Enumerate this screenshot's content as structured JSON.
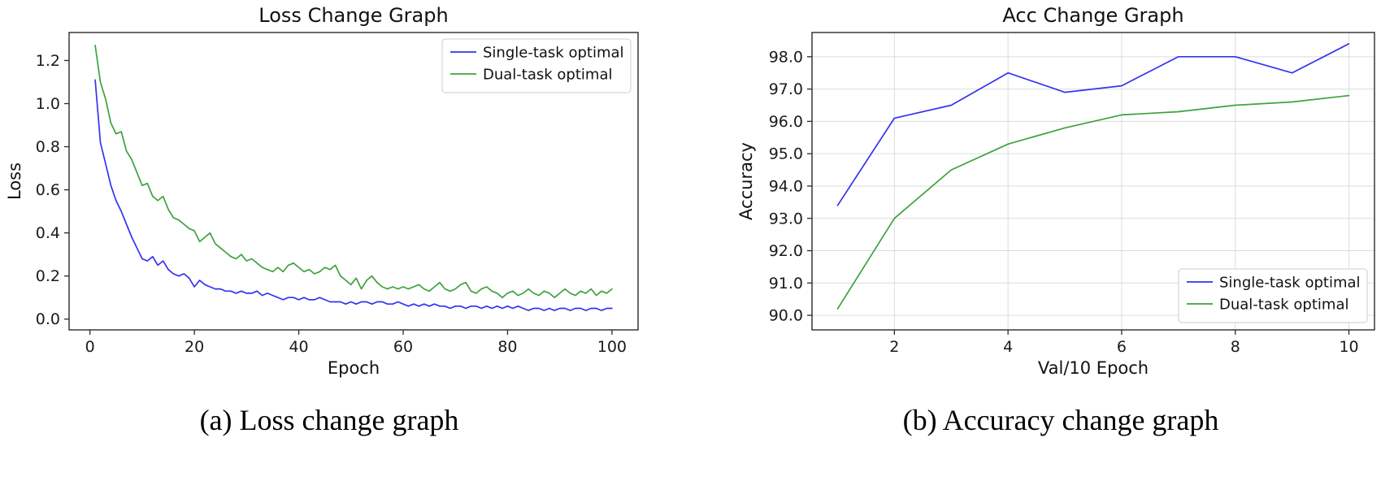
{
  "figure": {
    "captions": [
      {
        "label": "(a) Loss change graph"
      },
      {
        "label": "(b) Accuracy change graph"
      }
    ]
  },
  "colors": {
    "single_task": "#3333f0",
    "dual_task": "#3da23d",
    "axis": "#2b2b2b",
    "grid": "#dcdcdc",
    "legend_border": "#cccccc"
  },
  "chart_data": [
    {
      "type": "line",
      "title": "Loss Change Graph",
      "xlabel": "Epoch",
      "ylabel": "Loss",
      "xlim": [
        -4,
        105
      ],
      "ylim": [
        -0.05,
        1.33
      ],
      "xticks": [
        0,
        20,
        40,
        60,
        80,
        100
      ],
      "xtick_labels": [
        "0",
        "20",
        "40",
        "60",
        "80",
        "100"
      ],
      "yticks": [
        0.0,
        0.2,
        0.4,
        0.6,
        0.8,
        1.0,
        1.2
      ],
      "ytick_labels": [
        "0.0",
        "0.2",
        "0.4",
        "0.6",
        "0.8",
        "1.0",
        "1.2"
      ],
      "grid": false,
      "legend_pos": "upper-right",
      "series": [
        {
          "name": "Single-task optimal",
          "color": "#3333f0",
          "values": [
            1.11,
            0.82,
            0.72,
            0.62,
            0.55,
            0.5,
            0.44,
            0.38,
            0.33,
            0.28,
            0.27,
            0.29,
            0.25,
            0.27,
            0.23,
            0.21,
            0.2,
            0.21,
            0.19,
            0.15,
            0.18,
            0.16,
            0.15,
            0.14,
            0.14,
            0.13,
            0.13,
            0.12,
            0.13,
            0.12,
            0.12,
            0.13,
            0.11,
            0.12,
            0.11,
            0.1,
            0.09,
            0.1,
            0.1,
            0.09,
            0.1,
            0.09,
            0.09,
            0.1,
            0.09,
            0.08,
            0.08,
            0.08,
            0.07,
            0.08,
            0.07,
            0.08,
            0.08,
            0.07,
            0.08,
            0.08,
            0.07,
            0.07,
            0.08,
            0.07,
            0.06,
            0.07,
            0.06,
            0.07,
            0.06,
            0.07,
            0.06,
            0.06,
            0.05,
            0.06,
            0.06,
            0.05,
            0.06,
            0.06,
            0.05,
            0.06,
            0.05,
            0.06,
            0.05,
            0.06,
            0.05,
            0.06,
            0.05,
            0.04,
            0.05,
            0.05,
            0.04,
            0.05,
            0.04,
            0.05,
            0.05,
            0.04,
            0.05,
            0.05,
            0.04,
            0.05,
            0.05,
            0.04,
            0.05,
            0.05
          ]
        },
        {
          "name": "Dual-task optimal",
          "color": "#3da23d",
          "values": [
            1.27,
            1.1,
            1.02,
            0.91,
            0.86,
            0.87,
            0.78,
            0.74,
            0.68,
            0.62,
            0.63,
            0.57,
            0.55,
            0.57,
            0.51,
            0.47,
            0.46,
            0.44,
            0.42,
            0.41,
            0.36,
            0.38,
            0.4,
            0.35,
            0.33,
            0.31,
            0.29,
            0.28,
            0.3,
            0.27,
            0.28,
            0.26,
            0.24,
            0.23,
            0.22,
            0.24,
            0.22,
            0.25,
            0.26,
            0.24,
            0.22,
            0.23,
            0.21,
            0.22,
            0.24,
            0.23,
            0.25,
            0.2,
            0.18,
            0.16,
            0.19,
            0.14,
            0.18,
            0.2,
            0.17,
            0.15,
            0.14,
            0.15,
            0.14,
            0.15,
            0.14,
            0.15,
            0.16,
            0.14,
            0.13,
            0.15,
            0.17,
            0.14,
            0.13,
            0.14,
            0.16,
            0.17,
            0.13,
            0.12,
            0.14,
            0.15,
            0.13,
            0.12,
            0.1,
            0.12,
            0.13,
            0.11,
            0.12,
            0.14,
            0.12,
            0.11,
            0.13,
            0.12,
            0.1,
            0.12,
            0.14,
            0.12,
            0.11,
            0.13,
            0.12,
            0.14,
            0.11,
            0.13,
            0.12,
            0.14
          ]
        }
      ]
    },
    {
      "type": "line",
      "title": "Acc Change Graph",
      "xlabel": "Val/10 Epoch",
      "ylabel": "Accuracy",
      "xlim": [
        0.55,
        10.45
      ],
      "ylim": [
        89.55,
        98.75
      ],
      "xticks": [
        2,
        4,
        6,
        8,
        10
      ],
      "xtick_labels": [
        "2",
        "4",
        "6",
        "8",
        "10"
      ],
      "yticks": [
        90,
        91,
        92,
        93,
        94,
        95,
        96,
        97,
        98
      ],
      "ytick_labels": [
        "90.0",
        "91.0",
        "92.0",
        "93.0",
        "94.0",
        "95.0",
        "96.0",
        "97.0",
        "98.0"
      ],
      "grid": true,
      "legend_pos": "lower-right",
      "series": [
        {
          "name": "Single-task optimal",
          "color": "#3333f0",
          "x": [
            1,
            2,
            3,
            4,
            5,
            6,
            7,
            8,
            9,
            10
          ],
          "values": [
            93.4,
            96.1,
            96.5,
            97.5,
            96.9,
            97.1,
            98.0,
            98.0,
            97.5,
            98.4
          ]
        },
        {
          "name": "Dual-task optimal",
          "color": "#3da23d",
          "x": [
            1,
            2,
            3,
            4,
            5,
            6,
            7,
            8,
            9,
            10
          ],
          "values": [
            90.2,
            93.0,
            94.5,
            95.3,
            95.8,
            96.2,
            96.3,
            96.5,
            96.6,
            96.8
          ]
        }
      ]
    }
  ]
}
